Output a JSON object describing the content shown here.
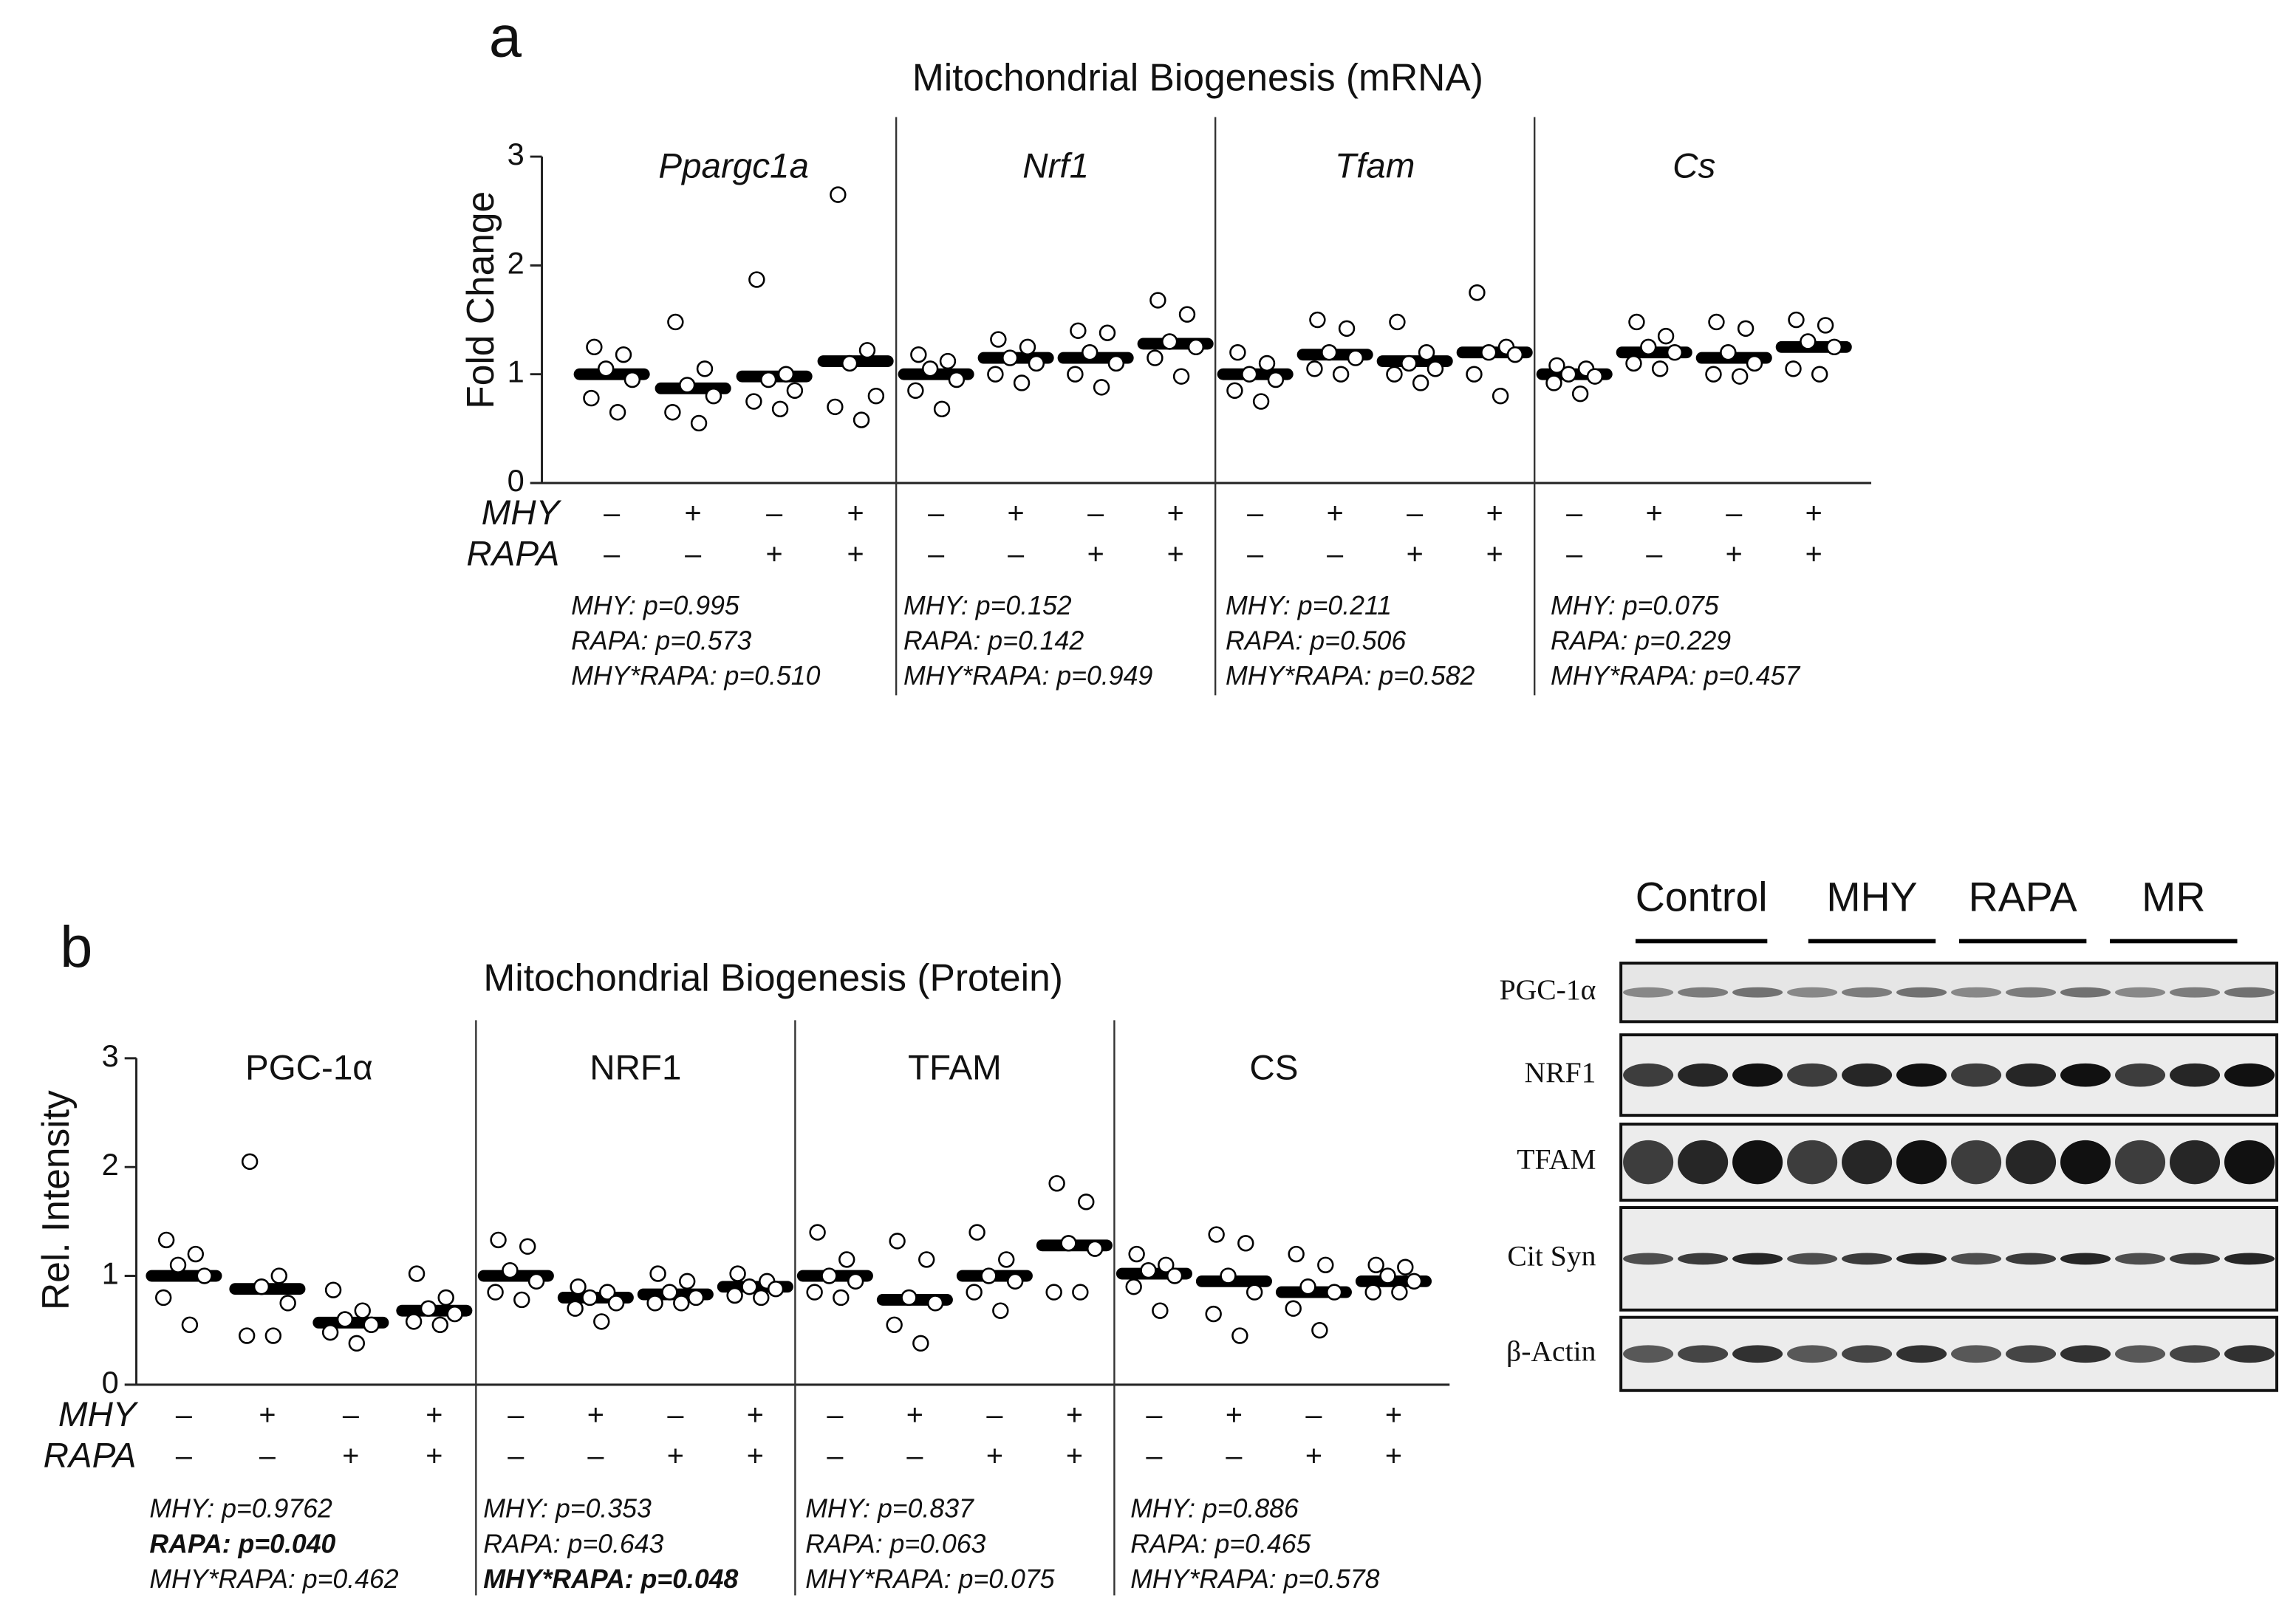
{
  "chart_data": [
    {
      "type": "dot",
      "panel_label": "a",
      "title": "Mitochondrial Biogenesis (mRNA)",
      "ylabel": "Fold Change",
      "italic_names": true,
      "ylim": [
        0,
        3
      ],
      "yticks": [
        0,
        1,
        2,
        3
      ],
      "rows": [
        {
          "label": "MHY",
          "signs": [
            "–",
            "+",
            "–",
            "+"
          ]
        },
        {
          "label": "RAPA",
          "signs": [
            "–",
            "–",
            "+",
            "+"
          ]
        }
      ],
      "panels": [
        {
          "name": "Ppargc1a",
          "means": [
            1.0,
            0.87,
            0.98,
            1.12
          ],
          "points": [
            [
              1.25,
              1.18,
              1.05,
              0.95,
              0.78,
              0.65
            ],
            [
              1.48,
              1.05,
              0.9,
              0.8,
              0.65,
              0.55
            ],
            [
              1.87,
              1.0,
              0.95,
              0.85,
              0.75,
              0.68
            ],
            [
              2.65,
              1.22,
              1.1,
              0.8,
              0.7,
              0.58
            ]
          ],
          "stats": [
            {
              "text": "MHY: p=0.995"
            },
            {
              "text": "RAPA: p=0.573"
            },
            {
              "text": "MHY*RAPA: p=0.510"
            }
          ]
        },
        {
          "name": "Nrf1",
          "means": [
            1.0,
            1.15,
            1.15,
            1.28
          ],
          "points": [
            [
              1.18,
              1.12,
              1.05,
              0.95,
              0.85,
              0.68
            ],
            [
              1.32,
              1.25,
              1.15,
              1.1,
              1.0,
              0.92
            ],
            [
              1.4,
              1.38,
              1.2,
              1.1,
              1.0,
              0.88
            ],
            [
              1.68,
              1.55,
              1.3,
              1.25,
              1.15,
              0.98
            ]
          ],
          "stats": [
            {
              "text": "MHY: p=0.152"
            },
            {
              "text": "RAPA: p=0.142"
            },
            {
              "text": "MHY*RAPA: p=0.949"
            }
          ]
        },
        {
          "name": "Tfam",
          "means": [
            1.0,
            1.18,
            1.12,
            1.2
          ],
          "points": [
            [
              1.2,
              1.1,
              1.0,
              0.95,
              0.85,
              0.75
            ],
            [
              1.5,
              1.42,
              1.2,
              1.15,
              1.05,
              1.0
            ],
            [
              1.48,
              1.2,
              1.1,
              1.05,
              1.0,
              0.92
            ],
            [
              1.75,
              1.25,
              1.2,
              1.18,
              1.0,
              0.8
            ]
          ],
          "stats": [
            {
              "text": "MHY: p=0.211"
            },
            {
              "text": "RAPA: p=0.506"
            },
            {
              "text": "MHY*RAPA: p=0.582"
            }
          ]
        },
        {
          "name": "Cs",
          "means": [
            1.0,
            1.2,
            1.15,
            1.25
          ],
          "points": [
            [
              1.08,
              1.05,
              1.0,
              0.98,
              0.92,
              0.82
            ],
            [
              1.48,
              1.35,
              1.25,
              1.2,
              1.1,
              1.05
            ],
            [
              1.48,
              1.42,
              1.2,
              1.1,
              1.0,
              0.98
            ],
            [
              1.5,
              1.45,
              1.3,
              1.25,
              1.05,
              1.0
            ]
          ],
          "stats": [
            {
              "text": "MHY: p=0.075"
            },
            {
              "text": "RAPA: p=0.229"
            },
            {
              "text": "MHY*RAPA: p=0.457"
            }
          ]
        }
      ]
    },
    {
      "type": "dot",
      "panel_label": "b",
      "title": "Mitochondrial Biogenesis (Protein)",
      "ylabel": "Rel. Intensity",
      "italic_names": false,
      "ylim": [
        0,
        3
      ],
      "yticks": [
        0,
        1,
        2,
        3
      ],
      "rows": [
        {
          "label": "MHY",
          "signs": [
            "–",
            "+",
            "–",
            "+"
          ]
        },
        {
          "label": "RAPA",
          "signs": [
            "–",
            "–",
            "+",
            "+"
          ]
        }
      ],
      "panels": [
        {
          "name": "PGC-1α",
          "means": [
            1.0,
            0.88,
            0.57,
            0.68
          ],
          "points": [
            [
              1.33,
              1.2,
              1.1,
              1.0,
              0.8,
              0.55
            ],
            [
              2.05,
              1.0,
              0.9,
              0.75,
              0.45,
              0.45
            ],
            [
              0.87,
              0.68,
              0.6,
              0.55,
              0.48,
              0.38
            ],
            [
              1.02,
              0.8,
              0.7,
              0.65,
              0.58,
              0.55
            ]
          ],
          "stats": [
            {
              "text": "MHY: p=0.9762"
            },
            {
              "text": "RAPA: p=0.040",
              "bold": true
            },
            {
              "text": "MHY*RAPA: p=0.462"
            }
          ]
        },
        {
          "name": "NRF1",
          "means": [
            1.0,
            0.8,
            0.83,
            0.9
          ],
          "points": [
            [
              1.33,
              1.27,
              1.05,
              0.95,
              0.85,
              0.78
            ],
            [
              0.9,
              0.85,
              0.8,
              0.75,
              0.7,
              0.58
            ],
            [
              1.02,
              0.95,
              0.85,
              0.8,
              0.75,
              0.75
            ],
            [
              1.02,
              0.95,
              0.9,
              0.88,
              0.82,
              0.8
            ]
          ],
          "stats": [
            {
              "text": "MHY: p=0.353"
            },
            {
              "text": "RAPA: p=0.643"
            },
            {
              "text": "MHY*RAPA: p=0.048",
              "bold": true
            }
          ]
        },
        {
          "name": "TFAM",
          "means": [
            1.0,
            0.78,
            1.0,
            1.28
          ],
          "points": [
            [
              1.4,
              1.15,
              1.0,
              0.95,
              0.85,
              0.8
            ],
            [
              1.32,
              1.15,
              0.8,
              0.75,
              0.55,
              0.38
            ],
            [
              1.4,
              1.15,
              1.0,
              0.95,
              0.85,
              0.68
            ],
            [
              1.85,
              1.68,
              1.3,
              1.25,
              0.85,
              0.85
            ]
          ],
          "stats": [
            {
              "text": "MHY: p=0.837"
            },
            {
              "text": "RAPA: p=0.063"
            },
            {
              "text": "MHY*RAPA: p=0.075"
            }
          ]
        },
        {
          "name": "CS",
          "means": [
            1.02,
            0.95,
            0.85,
            0.95
          ],
          "points": [
            [
              1.2,
              1.1,
              1.05,
              1.0,
              0.9,
              0.68
            ],
            [
              1.38,
              1.3,
              1.0,
              0.85,
              0.65,
              0.45
            ],
            [
              1.2,
              1.1,
              0.9,
              0.85,
              0.7,
              0.5
            ],
            [
              1.1,
              1.08,
              1.0,
              0.95,
              0.85,
              0.85
            ]
          ],
          "stats": [
            {
              "text": "MHY: p=0.886"
            },
            {
              "text": "RAPA: p=0.465"
            },
            {
              "text": "MHY*RAPA: p=0.578"
            }
          ]
        }
      ]
    }
  ],
  "blot": {
    "groups": [
      "Control",
      "MHY",
      "RAPA",
      "MR"
    ],
    "rows": [
      "PGC-1α",
      "NRF1",
      "TFAM",
      "Cit Syn",
      "β-Actin"
    ]
  }
}
